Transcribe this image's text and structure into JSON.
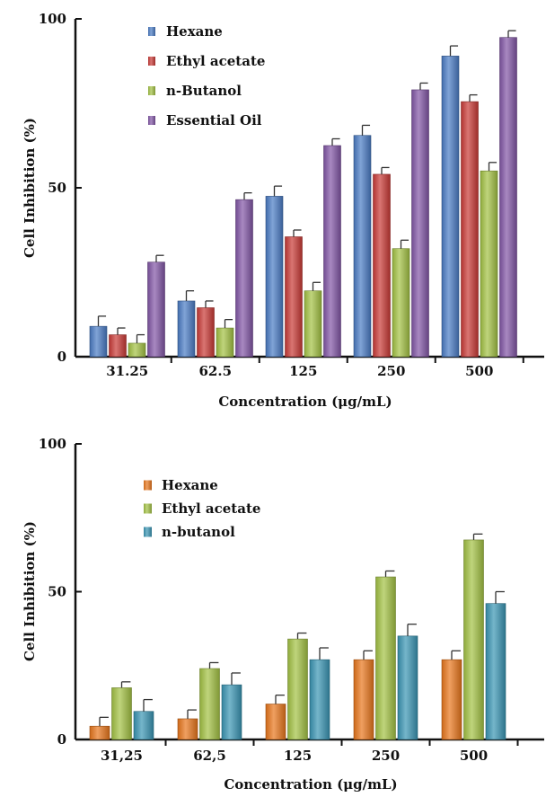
{
  "chart_data": [
    {
      "type": "bar",
      "categories": [
        "31.25",
        "62.5",
        "125",
        "250",
        "500"
      ],
      "series": [
        {
          "name": "Hexane",
          "values": [
            9,
            16.5,
            47.5,
            65.5,
            89
          ],
          "errors": [
            3,
            3,
            3,
            3,
            3
          ]
        },
        {
          "name": "Ethyl acetate",
          "values": [
            6.5,
            14.5,
            35.5,
            54,
            75.5
          ],
          "errors": [
            2,
            2,
            2,
            2,
            2
          ]
        },
        {
          "name": "n-Butanol",
          "values": [
            4,
            8.5,
            19.5,
            32,
            55
          ],
          "errors": [
            2.5,
            2.5,
            2.5,
            2.5,
            2.5
          ]
        },
        {
          "name": "Essential Oil",
          "values": [
            28,
            46.5,
            62.5,
            79,
            94.5
          ],
          "errors": [
            2,
            2,
            2,
            2,
            2
          ]
        }
      ],
      "colors": [
        "#4a7bc4",
        "#c93a36",
        "#a3c244",
        "#8256a6"
      ],
      "yticks": [
        "0",
        "50",
        "100"
      ],
      "ylim": [
        0,
        100
      ],
      "ylabel": "Cell Inhibition (%)",
      "xlabel": "Concentration (μg/mL)",
      "legend_position": "top-left"
    },
    {
      "type": "bar",
      "categories": [
        "31,25",
        "62,5",
        "125",
        "250",
        "500"
      ],
      "series": [
        {
          "name": "Hexane",
          "values": [
            4.5,
            7,
            12,
            27,
            27
          ],
          "errors": [
            3,
            3,
            3,
            3,
            3
          ]
        },
        {
          "name": "Ethyl acetate",
          "values": [
            17.5,
            24,
            34,
            55,
            67.5
          ],
          "errors": [
            2,
            2,
            2,
            2,
            2
          ]
        },
        {
          "name": "n-butanol",
          "values": [
            9.5,
            18.5,
            27,
            35,
            46
          ],
          "errors": [
            4,
            4,
            4,
            4,
            4
          ]
        }
      ],
      "colors": [
        "#e8761c",
        "#a3c244",
        "#3a95b3"
      ],
      "yticks": [
        "0",
        "50",
        "100"
      ],
      "ylim": [
        0,
        100
      ],
      "ylabel": "Cell Inhibition (%)",
      "xlabel": "Concentration (μg/mL)",
      "legend_position": "top-left"
    }
  ]
}
